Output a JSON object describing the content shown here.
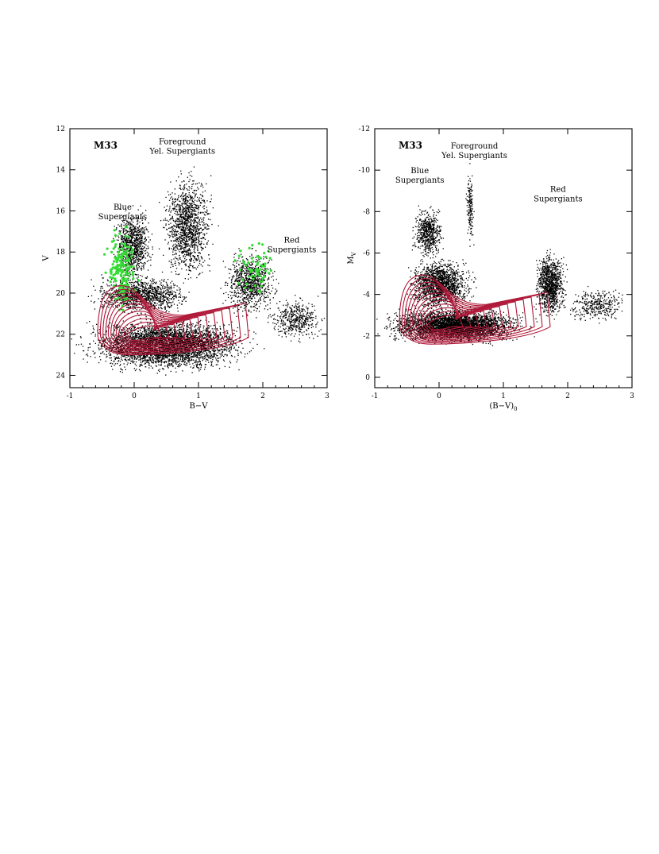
{
  "chart_data": [
    {
      "type": "scatter",
      "panel_label": "M33",
      "xlabel": "B−V",
      "ylabel": "V",
      "xlim": [
        -1,
        3
      ],
      "ylim": [
        24.6,
        12
      ],
      "x_ticks": [
        -1,
        0,
        1,
        2,
        3
      ],
      "y_ticks": [
        12,
        14,
        16,
        18,
        20,
        22,
        24
      ],
      "y_inverted": true,
      "grid": false,
      "annotations": [
        {
          "lines": [
            "Foreground",
            "Yel. Supergiants"
          ],
          "x": 0.75,
          "y": 12.75
        },
        {
          "lines": [
            "Blue",
            "Supergiants"
          ],
          "x": -0.18,
          "y": 15.95
        },
        {
          "lines": [
            "Red",
            "Supergiants"
          ],
          "x": 2.45,
          "y": 17.55
        }
      ],
      "series": [
        {
          "kind": "black-dot-cloud",
          "color": "#000000",
          "regions": [
            {
              "x": [
                -1.0,
                2.0
              ],
              "y": [
                21.0,
                24.0
              ],
              "n": 4200
            },
            {
              "x": [
                -0.8,
                1.0
              ],
              "y": [
                19.0,
                21.2
              ],
              "n": 1200
            },
            {
              "x": [
                -0.4,
                0.35
              ],
              "y": [
                15.5,
                20.0
              ],
              "n": 900
            },
            {
              "x": [
                0.35,
                1.3
              ],
              "y": [
                13.5,
                20.0
              ],
              "n": 1300
            },
            {
              "x": [
                1.3,
                2.3
              ],
              "y": [
                17.5,
                21.5
              ],
              "n": 900
            },
            {
              "x": [
                2.0,
                3.0
              ],
              "y": [
                20.0,
                22.5
              ],
              "n": 450
            }
          ]
        },
        {
          "kind": "green-supergiants",
          "color": "#33dd33",
          "regions": [
            {
              "x": [
                -0.5,
                0.1
              ],
              "y": [
                16.0,
                21.5
              ],
              "n": 170
            },
            {
              "x": [
                1.5,
                2.3
              ],
              "y": [
                17.0,
                20.5
              ],
              "n": 60
            }
          ]
        },
        {
          "kind": "density-contours",
          "color": "#b01838",
          "center": [
            0.05,
            22.0
          ],
          "levels": 12
        }
      ]
    },
    {
      "type": "scatter",
      "panel_label": "M33",
      "xlabel": "(B−V)",
      "xlabel_sub": "0",
      "ylabel": "M",
      "ylabel_sub": "V",
      "xlim": [
        -1,
        3
      ],
      "ylim": [
        0.5,
        -12
      ],
      "x_ticks": [
        -1,
        0,
        1,
        2,
        3
      ],
      "y_ticks": [
        -12,
        -10,
        -8,
        -6,
        -4,
        -2,
        0
      ],
      "y_inverted": true,
      "grid": false,
      "annotations": [
        {
          "lines": [
            "Foreground",
            "Yel. Supergiants"
          ],
          "x": 0.55,
          "y": -11.05
        },
        {
          "lines": [
            "Blue",
            "Supergiants"
          ],
          "x": -0.3,
          "y": -9.85
        },
        {
          "lines": [
            "Red",
            "Supergiants"
          ],
          "x": 1.85,
          "y": -8.95
        }
      ],
      "series": [
        {
          "kind": "black-dot-cloud",
          "color": "#000000",
          "regions": [
            {
              "x": [
                -1.0,
                1.5
              ],
              "y": [
                -3.5,
                -1.5
              ],
              "n": 4000
            },
            {
              "x": [
                -0.6,
                0.6
              ],
              "y": [
                -6.0,
                -3.0
              ],
              "n": 1600
            },
            {
              "x": [
                -0.45,
                0.1
              ],
              "y": [
                -8.5,
                -5.5
              ],
              "n": 600
            },
            {
              "x": [
                0.4,
                0.55
              ],
              "y": [
                -10.5,
                -6.0
              ],
              "n": 160
            },
            {
              "x": [
                1.45,
                2.0
              ],
              "y": [
                -6.5,
                -2.5
              ],
              "n": 1000
            },
            {
              "x": [
                1.9,
                3.0
              ],
              "y": [
                -4.5,
                -2.5
              ],
              "n": 350
            }
          ]
        },
        {
          "kind": "density-contours",
          "color": "#b01838",
          "center": [
            0.0,
            -2.6
          ],
          "levels": 12
        }
      ]
    }
  ]
}
